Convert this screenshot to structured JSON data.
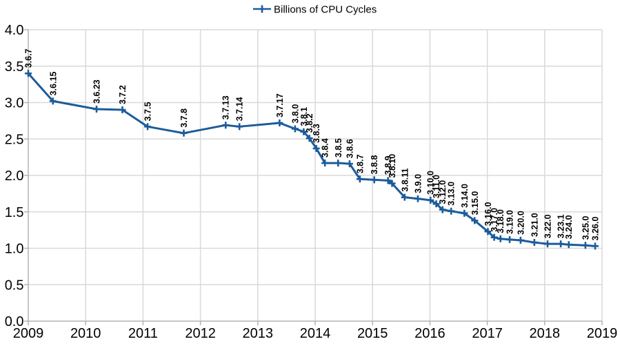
{
  "chart_data": {
    "type": "line",
    "title": "",
    "legend": "Billions of CPU Cycles",
    "legend_position": "top-center",
    "xlabel": "",
    "ylabel": "",
    "xlim": [
      2009,
      2019
    ],
    "ylim": [
      0.0,
      4.0
    ],
    "x_tick_labels": [
      "2009",
      "2010",
      "2011",
      "2012",
      "2013",
      "2014",
      "2015",
      "2016",
      "2017",
      "2018",
      "2019"
    ],
    "y_tick_labels": [
      "0.0",
      "0.5",
      "1.0",
      "1.5",
      "2.0",
      "2.5",
      "3.0",
      "3.5",
      "4.0"
    ],
    "y_tick_step": 0.5,
    "grid": true,
    "marker": "plus",
    "data_label_rotation_degrees": 90,
    "colors": {
      "series": "#1b5c9b",
      "gridline": "#d9d9d9",
      "axis": "#b3b3b3",
      "text": "#000000",
      "background": "#ffffff"
    },
    "series": [
      {
        "name": "Billions of CPU Cycles",
        "points": [
          {
            "label": "3.6.7",
            "x": 2009.0,
            "y": 3.4
          },
          {
            "label": "3.6.15",
            "x": 2009.43,
            "y": 3.02
          },
          {
            "label": "3.6.23",
            "x": 2010.19,
            "y": 2.91
          },
          {
            "label": "3.7.2",
            "x": 2010.64,
            "y": 2.9
          },
          {
            "label": "3.7.5",
            "x": 2011.08,
            "y": 2.67
          },
          {
            "label": "3.7.8",
            "x": 2011.71,
            "y": 2.58
          },
          {
            "label": "3.7.13",
            "x": 2012.44,
            "y": 2.69
          },
          {
            "label": "3.7.14",
            "x": 2012.68,
            "y": 2.67
          },
          {
            "label": "3.7.17",
            "x": 2013.38,
            "y": 2.72
          },
          {
            "label": "3.8.0",
            "x": 2013.65,
            "y": 2.64
          },
          {
            "label": "3.8.1",
            "x": 2013.8,
            "y": 2.6
          },
          {
            "label": "3.8.2",
            "x": 2013.9,
            "y": 2.51
          },
          {
            "label": "3.8.3",
            "x": 2014.02,
            "y": 2.37
          },
          {
            "label": "3.8.4",
            "x": 2014.17,
            "y": 2.17
          },
          {
            "label": "3.8.5",
            "x": 2014.4,
            "y": 2.17
          },
          {
            "label": "3.8.6",
            "x": 2014.6,
            "y": 2.16
          },
          {
            "label": "3.8.7",
            "x": 2014.78,
            "y": 1.95
          },
          {
            "label": "3.8.8",
            "x": 2015.03,
            "y": 1.94
          },
          {
            "label": "3.8.9",
            "x": 2015.27,
            "y": 1.93
          },
          {
            "label": "3.8.10",
            "x": 2015.34,
            "y": 1.89
          },
          {
            "label": "3.8.11",
            "x": 2015.56,
            "y": 1.7
          },
          {
            "label": "3.9.0",
            "x": 2015.79,
            "y": 1.68
          },
          {
            "label": "3.10.0",
            "x": 2016.01,
            "y": 1.66
          },
          {
            "label": "3.11.0",
            "x": 2016.11,
            "y": 1.61
          },
          {
            "label": "3.12.0",
            "x": 2016.22,
            "y": 1.53
          },
          {
            "label": "3.13.0",
            "x": 2016.37,
            "y": 1.51
          },
          {
            "label": "3.14.0",
            "x": 2016.6,
            "y": 1.48
          },
          {
            "label": "3.15.0",
            "x": 2016.78,
            "y": 1.38
          },
          {
            "label": "3.16.0",
            "x": 2017.01,
            "y": 1.23
          },
          {
            "label": "3.17.0",
            "x": 2017.12,
            "y": 1.15
          },
          {
            "label": "3.18.0",
            "x": 2017.23,
            "y": 1.13
          },
          {
            "label": "3.19.0",
            "x": 2017.39,
            "y": 1.12
          },
          {
            "label": "3.20.0",
            "x": 2017.58,
            "y": 1.11
          },
          {
            "label": "3.21.0",
            "x": 2017.82,
            "y": 1.08
          },
          {
            "label": "3.22.0",
            "x": 2018.05,
            "y": 1.06
          },
          {
            "label": "3.23.1",
            "x": 2018.28,
            "y": 1.06
          },
          {
            "label": "3.24.0",
            "x": 2018.42,
            "y": 1.05
          },
          {
            "label": "3.25.0",
            "x": 2018.71,
            "y": 1.04
          },
          {
            "label": "3.26.0",
            "x": 2018.88,
            "y": 1.03
          }
        ]
      }
    ]
  }
}
